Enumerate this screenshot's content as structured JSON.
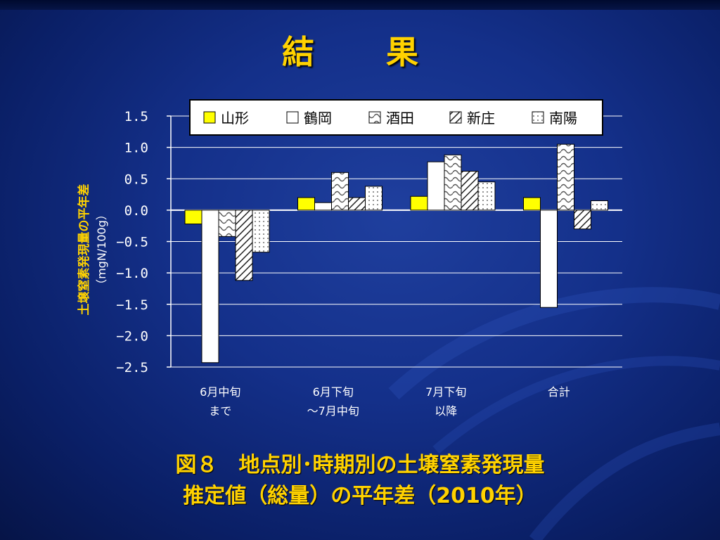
{
  "slide": {
    "title": "結　果",
    "caption_line1": "図８　地点別･時期別の土壌窒素発現量",
    "caption_line2": "推定値（総量）の平年差（2010年）"
  },
  "chart_data": {
    "type": "bar",
    "title": "",
    "ylabel": "土壌窒素発現量の平年差",
    "ylabel_unit": "（mgN/100g）",
    "ylim": [
      -2.5,
      1.5
    ],
    "yticks": [
      "1.5",
      "1.0",
      "0.5",
      "0.0",
      "−0.5",
      "−1.0",
      "−1.5",
      "−2.0",
      "−2.5"
    ],
    "ytick_values": [
      1.5,
      1.0,
      0.5,
      0.0,
      -0.5,
      -1.0,
      -1.5,
      -2.0,
      -2.5
    ],
    "grid": true,
    "legend_position": "top",
    "categories": [
      {
        "line1": "6月中旬",
        "line2": "まで"
      },
      {
        "line1": "6月下旬",
        "line2": "～7月中旬"
      },
      {
        "line1": "7月下旬",
        "line2": "以降"
      },
      {
        "line1": "合計",
        "line2": ""
      }
    ],
    "series": [
      {
        "name": "山形",
        "pattern": "solid-yellow",
        "color": "#ffff00",
        "values": [
          -0.22,
          0.2,
          0.22,
          0.2
        ]
      },
      {
        "name": "鶴岡",
        "pattern": "solid-white",
        "color": "#ffffff",
        "values": [
          -2.43,
          0.12,
          0.77,
          -1.55
        ]
      },
      {
        "name": "酒田",
        "pattern": "wave",
        "color": "#ffffff",
        "values": [
          -0.42,
          0.6,
          0.88,
          1.05
        ]
      },
      {
        "name": "新庄",
        "pattern": "diagonal-hatch",
        "color": "#ffffff",
        "values": [
          -1.12,
          0.2,
          0.62,
          -0.3
        ]
      },
      {
        "name": "南陽",
        "pattern": "dots",
        "color": "#ffffff",
        "values": [
          -0.67,
          0.38,
          0.45,
          0.15
        ]
      }
    ]
  }
}
